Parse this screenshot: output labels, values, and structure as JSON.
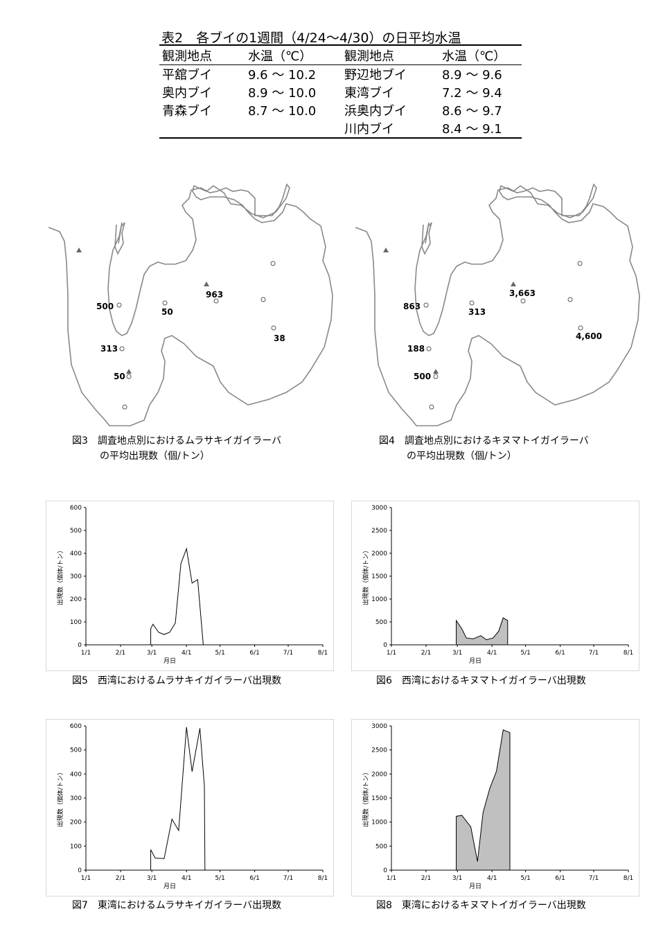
{
  "table": {
    "title": "表2　各ブイの1週間（4/24～4/30）の日平均水温",
    "headers": [
      "観測地点",
      "水温（℃）",
      "観測地点",
      "水温（℃）"
    ],
    "rows": [
      [
        "平舘ブイ",
        "9.6 ～ 10.2",
        "野辺地ブイ",
        "8.9 ～ 9.6"
      ],
      [
        "奥内ブイ",
        "8.9 ～ 10.0",
        "東湾ブイ",
        "7.2 ～ 9.4"
      ],
      [
        "青森ブイ",
        "8.7 ～ 10.0",
        "浜奥内ブイ",
        "8.6 ～ 9.7"
      ],
      [
        "",
        "",
        "川内ブイ",
        "8.4 ～ 9.1"
      ]
    ]
  },
  "map3": {
    "labels": [
      "500",
      "50",
      "963",
      "313",
      "38",
      "50"
    ],
    "caption_line1": "図3　調査地点別におけるムラサキイガイラーバ",
    "caption_line2": "の平均出現数（個/トン）"
  },
  "map4": {
    "labels": [
      "863",
      "313",
      "3,663",
      "188",
      "4,600",
      "500"
    ],
    "caption_line1": "図4　調査地点別におけるキヌマトイガイラーバ",
    "caption_line2": "の平均出現数（個/トン）"
  },
  "chart_data": [
    {
      "type": "line",
      "caption": "図5　西湾におけるムラサキイガイラーバ出現数",
      "xlabel": "月日",
      "ylabel": "出現数（個体/トン）",
      "x_ticks": [
        "1/1",
        "2/1",
        "3/1",
        "4/1",
        "5/1",
        "6/1",
        "7/1",
        "8/1"
      ],
      "y_ticks": [
        0,
        100,
        200,
        300,
        400,
        500,
        600
      ],
      "ylim": [
        0,
        600
      ],
      "fill": "none",
      "x": [
        58,
        60,
        65,
        70,
        75,
        80,
        85,
        90,
        95,
        100,
        105
      ],
      "values": [
        70,
        90,
        55,
        45,
        55,
        95,
        355,
        420,
        270,
        285,
        0
      ]
    },
    {
      "type": "area",
      "caption": "図6　西湾におけるキヌマトイガイラーバ出現数",
      "xlabel": "月日",
      "ylabel": "出現数（個体/トン）",
      "x_ticks": [
        "1/1",
        "2/1",
        "3/1",
        "4/1",
        "5/1",
        "6/1",
        "7/1",
        "8/1"
      ],
      "y_ticks": [
        0,
        500,
        1000,
        1500,
        2000,
        2500,
        3000
      ],
      "ylim": [
        0,
        3000
      ],
      "fill": "#c0c0c0",
      "x": [
        58,
        63,
        67,
        73,
        80,
        85,
        91,
        96,
        100,
        104
      ],
      "values": [
        530,
        350,
        150,
        130,
        200,
        110,
        150,
        300,
        590,
        530
      ]
    },
    {
      "type": "line",
      "caption": "図7　東湾におけるムラサキイガイラーバ出現数",
      "xlabel": "月日",
      "ylabel": "出現数（個体/トン）",
      "x_ticks": [
        "1/1",
        "2/1",
        "3/1",
        "4/1",
        "5/1",
        "6/1",
        "7/1",
        "8/1"
      ],
      "y_ticks": [
        0,
        100,
        200,
        300,
        400,
        500,
        600
      ],
      "ylim": [
        0,
        600
      ],
      "fill": "none",
      "x": [
        58,
        62,
        70,
        77,
        83,
        90,
        95,
        102,
        106,
        106.5
      ],
      "values": [
        85,
        50,
        48,
        212,
        165,
        595,
        410,
        590,
        350,
        0
      ]
    },
    {
      "type": "area",
      "caption": "図8　東湾におけるキヌマトイガイラーバ出現数",
      "xlabel": "月日",
      "ylabel": "出現数（個体/トン）",
      "x_ticks": [
        "1/1",
        "2/1",
        "3/1",
        "4/1",
        "5/1",
        "6/1",
        "7/1",
        "8/1"
      ],
      "y_ticks": [
        0,
        500,
        1000,
        1500,
        2000,
        2500,
        3000
      ],
      "ylim": [
        0,
        3000
      ],
      "fill": "#c0c0c0",
      "x": [
        58,
        63,
        71,
        77,
        82,
        88,
        94,
        100,
        106
      ],
      "values": [
        1120,
        1140,
        900,
        180,
        1200,
        1700,
        2060,
        2920,
        2860
      ]
    }
  ]
}
